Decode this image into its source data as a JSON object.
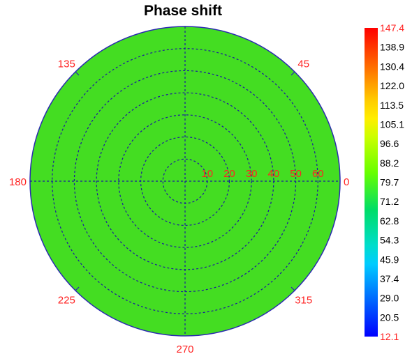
{
  "chart_data": {
    "type": "heatmap",
    "projection": "polar",
    "title": "Phase shift",
    "angle_ticks": [
      "0",
      "45",
      "135",
      "180",
      "225",
      "270",
      "315"
    ],
    "radial_ticks": [
      "10",
      "20",
      "30",
      "40",
      "50",
      "60"
    ],
    "radial_range": [
      0,
      70
    ],
    "grid": true,
    "grid_style": "dashed",
    "colorbar": {
      "range": [
        12.1,
        147.4
      ],
      "ticks": [
        "147.4",
        "138.9",
        "130.4",
        "122.0",
        "113.5",
        "105.1",
        "96.6",
        "88.2",
        "79.7",
        "71.2",
        "62.8",
        "54.3",
        "45.9",
        "37.4",
        "29.0",
        "20.5",
        "12.1"
      ],
      "colors": [
        "#ff0000",
        "#ff3300",
        "#ff6600",
        "#ff9900",
        "#ffcc00",
        "#ffee00",
        "#ccff00",
        "#99ff00",
        "#66ff00",
        "#33ee33",
        "#00dd66",
        "#00dd99",
        "#00ddcc",
        "#00ccff",
        "#0099ff",
        "#0066ff",
        "#0033ff",
        "#0000ff"
      ]
    },
    "field_value_approx": 84,
    "field_color": "#44dd22"
  },
  "colors": {
    "label": "#ff2222",
    "grid": "#1a1aa0",
    "outline": "#2a2ab0"
  }
}
